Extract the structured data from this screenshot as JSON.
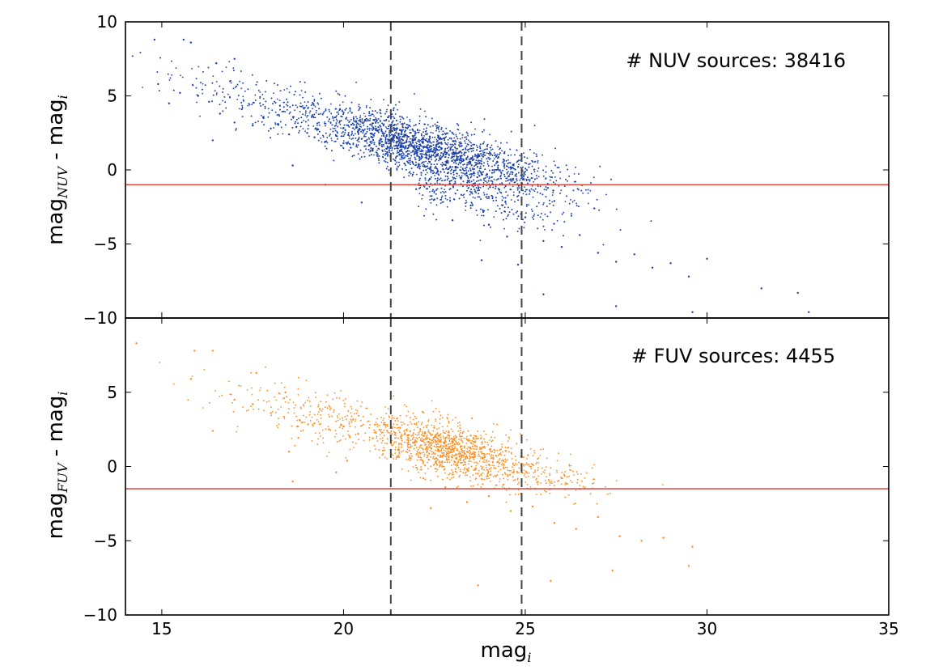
{
  "colors": {
    "nuv_points": "#1a3fa8",
    "fuv_points": "#ff8c1a",
    "threshold_line": "#e8453c",
    "dashed_line": "#444444",
    "axes": "#000000"
  },
  "chart_data": [
    {
      "type": "scatter",
      "panel": "top",
      "annotation": "# NUV sources: 38416",
      "ylabel": {
        "main": "mag",
        "sub": "NUV",
        "suffix": " - mag",
        "suffix_sub": "i"
      },
      "xlabel": "",
      "xlim": [
        14,
        35
      ],
      "ylim": [
        -10,
        10
      ],
      "yticks": [
        10,
        5,
        0,
        -5,
        -10
      ],
      "ytick_labels": [
        "10",
        "5",
        "0",
        "−5",
        "−10"
      ],
      "horizontal_line_y": -1,
      "vertical_dashed_x": [
        21.3,
        24.9
      ],
      "point_color": "#1a3fa8",
      "series": [
        {
          "values_note_free": true,
          "points": [
            [
              14.8,
              8.8
            ],
            [
              15.6,
              8.8
            ],
            [
              15.8,
              8.6
            ],
            [
              16.5,
              7.2
            ],
            [
              17.0,
              7.5
            ],
            [
              14.9,
              5.8
            ],
            [
              15.2,
              4.5
            ],
            [
              15.5,
              5.2
            ],
            [
              16.0,
              5.0
            ],
            [
              16.3,
              4.6
            ],
            [
              16.6,
              3.8
            ],
            [
              17.0,
              3.2
            ],
            [
              17.2,
              4.1
            ],
            [
              17.5,
              3.0
            ],
            [
              17.8,
              3.5
            ],
            [
              18.0,
              2.8
            ],
            [
              18.2,
              3.1
            ],
            [
              18.5,
              2.4
            ],
            [
              18.7,
              2.9
            ],
            [
              19.0,
              2.5
            ],
            [
              19.2,
              2.2
            ],
            [
              19.5,
              1.9
            ],
            [
              19.8,
              2.3
            ],
            [
              20.0,
              1.8
            ],
            [
              20.2,
              1.5
            ],
            [
              20.5,
              2.1
            ],
            [
              20.8,
              1.4
            ],
            [
              21.0,
              1.8
            ],
            [
              21.2,
              1.2
            ],
            [
              16.4,
              2.0
            ],
            [
              18.6,
              0.3
            ],
            [
              19.5,
              -1.0
            ],
            [
              20.5,
              -2.2
            ],
            [
              22.0,
              -1.3
            ],
            [
              22.5,
              -2.0
            ],
            [
              23.0,
              -3.4
            ],
            [
              23.5,
              -2.4
            ],
            [
              24.0,
              -3.7
            ],
            [
              24.5,
              -4.5
            ],
            [
              25.0,
              -3.2
            ],
            [
              25.5,
              -4.8
            ],
            [
              26.0,
              -5.2
            ],
            [
              26.5,
              -4.4
            ],
            [
              27.0,
              -5.6
            ],
            [
              27.5,
              -6.2
            ],
            [
              28.0,
              -5.7
            ],
            [
              28.5,
              -6.6
            ],
            [
              29.0,
              -6.3
            ],
            [
              29.5,
              -7.2
            ],
            [
              30.0,
              -6.0
            ],
            [
              31.5,
              -8.0
            ],
            [
              32.5,
              -8.3
            ],
            [
              32.8,
              -9.6
            ],
            [
              29.6,
              -9.6
            ],
            [
              27.5,
              -9.2
            ],
            [
              25.5,
              -8.4
            ],
            [
              24.8,
              -6.4
            ],
            [
              23.8,
              -6.1
            ],
            [
              26.9,
              -2.6
            ],
            [
              25.8,
              -2.1
            ]
          ]
        }
      ]
    },
    {
      "type": "scatter",
      "panel": "bottom",
      "annotation": "# FUV sources: 4455",
      "ylabel": {
        "main": "mag",
        "sub": "FUV",
        "suffix": " - mag",
        "suffix_sub": "i"
      },
      "xlabel": {
        "main": "mag",
        "sub": "i"
      },
      "xlim": [
        14,
        35
      ],
      "ylim": [
        -10,
        10
      ],
      "xticks": [
        15,
        20,
        25,
        30,
        35
      ],
      "xtick_labels": [
        "15",
        "20",
        "25",
        "30",
        "35"
      ],
      "yticks": [
        5,
        0,
        -5,
        -10
      ],
      "ytick_labels": [
        "5",
        "0",
        "−5",
        "−10"
      ],
      "horizontal_line_y": -1.5,
      "vertical_dashed_x": [
        21.3,
        24.9
      ],
      "point_color": "#ff8c1a",
      "series": [
        {
          "points": [
            [
              14.3,
              8.3
            ],
            [
              15.9,
              7.8
            ],
            [
              16.4,
              7.8
            ],
            [
              17.6,
              6.3
            ],
            [
              15.8,
              5.9
            ],
            [
              16.4,
              2.4
            ],
            [
              17.0,
              4.5
            ],
            [
              17.5,
              4.2
            ],
            [
              18.0,
              3.6
            ],
            [
              18.4,
              5.0
            ],
            [
              18.8,
              3.1
            ],
            [
              19.2,
              2.9
            ],
            [
              19.6,
              2.5
            ],
            [
              20.0,
              2.7
            ],
            [
              20.4,
              2.2
            ],
            [
              20.8,
              1.9
            ],
            [
              21.2,
              2.4
            ],
            [
              18.5,
              1.0
            ],
            [
              18.6,
              -1.0
            ],
            [
              19.8,
              -0.4
            ],
            [
              22.2,
              -0.8
            ],
            [
              22.8,
              -1.4
            ],
            [
              23.4,
              -2.4
            ],
            [
              24.0,
              -2.0
            ],
            [
              24.6,
              -3.0
            ],
            [
              25.2,
              -2.7
            ],
            [
              25.8,
              -3.8
            ],
            [
              26.4,
              -4.2
            ],
            [
              27.0,
              -3.4
            ],
            [
              27.6,
              -4.7
            ],
            [
              28.2,
              -5.0
            ],
            [
              28.8,
              -4.8
            ],
            [
              29.6,
              -5.4
            ],
            [
              29.5,
              -6.7
            ],
            [
              27.4,
              -7.0
            ],
            [
              25.7,
              -7.7
            ],
            [
              23.7,
              -8.0
            ],
            [
              24.9,
              -6.0
            ],
            [
              22.4,
              -2.8
            ],
            [
              20.1,
              0.4
            ]
          ]
        }
      ]
    }
  ]
}
